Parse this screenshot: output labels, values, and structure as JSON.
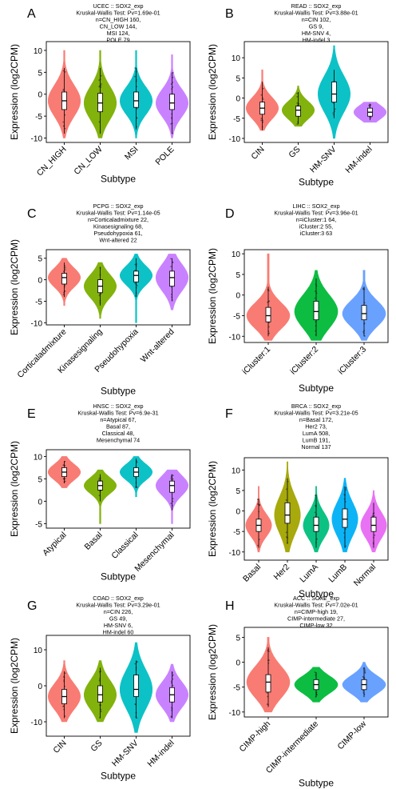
{
  "panels": [
    {
      "letter": "A",
      "header": [
        "UCEC :: SOX2_exp",
        "Kruskal-Wallis Test: Pv=1.69e-01",
        "n=CN_HIGH 160,",
        "CN_LOW 144,",
        "MSI 124,",
        "POLE 79"
      ],
      "chart_data": {
        "type": "violin",
        "xlabel": "Subtype",
        "ylabel": "Expression (log2CPM)",
        "ylim": [
          -11,
          12
        ],
        "yticks": [
          -10,
          -5,
          0,
          5,
          10
        ],
        "categories": [
          "CN_HIGH",
          "CN_LOW",
          "MSI",
          "POLE"
        ],
        "colors": [
          "#f8766d",
          "#7cae00",
          "#00bfc4",
          "#c77cff"
        ],
        "series": [
          {
            "ymin": -10,
            "ymax": 10,
            "q1": -3.5,
            "median": -1.5,
            "q3": 0.5,
            "whisker_low": -9,
            "whisker_high": 6
          },
          {
            "ymin": -10,
            "ymax": 10,
            "q1": -4,
            "median": -2,
            "q3": 0.2,
            "whisker_low": -9,
            "whisker_high": 6
          },
          {
            "ymin": -10,
            "ymax": 10,
            "q1": -3,
            "median": -1.5,
            "q3": 0.5,
            "whisker_low": -8,
            "whisker_high": 6
          },
          {
            "ymin": -10,
            "ymax": 9,
            "q1": -3.5,
            "median": -2,
            "q3": 0,
            "whisker_low": -9,
            "whisker_high": 5
          }
        ]
      }
    },
    {
      "letter": "B",
      "header": [
        "READ :: SOX2_exp",
        "Kruskal-Wallis Test: Pv=3.88e-01",
        "n=CIN 102,",
        "GS 9,",
        "HM-SNV 4,",
        "HM-indel 3"
      ],
      "chart_data": {
        "type": "violin",
        "xlabel": "Subtype",
        "ylabel": "Expression (log2CPM)",
        "ylim": [
          -11,
          14
        ],
        "yticks": [
          -10,
          -5,
          0,
          5,
          10
        ],
        "categories": [
          "CIN",
          "GS",
          "HM-SNV",
          "HM-indel"
        ],
        "colors": [
          "#f8766d",
          "#7cae00",
          "#00bfc4",
          "#c77cff"
        ],
        "series": [
          {
            "ymin": -8,
            "ymax": 7,
            "q1": -4,
            "median": -2.5,
            "q3": -1,
            "whisker_low": -8,
            "whisker_high": 4
          },
          {
            "ymin": -7,
            "ymax": 3,
            "q1": -4.5,
            "median": -3,
            "q3": -2,
            "whisker_low": -6.5,
            "whisker_high": 1.5
          },
          {
            "ymin": -10,
            "ymax": 13,
            "q1": -1,
            "median": 1,
            "q3": 4,
            "whisker_low": -5,
            "whisker_high": 7
          },
          {
            "ymin": -6,
            "ymax": -1,
            "q1": -4.5,
            "median": -3.5,
            "q3": -2.5,
            "whisker_low": -5.5,
            "whisker_high": -1.5
          }
        ]
      }
    },
    {
      "letter": "C",
      "header": [
        "PCPG :: SOX2_exp",
        "Kruskal-Wallis Test: Pv=1.14e-05",
        "n=Corticaladmixture 22,",
        "Kinasesignaling 68,",
        "Pseudohypoxia 61,",
        "Wnt-altered 22"
      ],
      "chart_data": {
        "type": "violin",
        "xlabel": "Subtype",
        "ylabel": "Expression (log2CPM)",
        "ylim": [
          -10.5,
          7
        ],
        "yticks": [
          -10,
          -5,
          0,
          5
        ],
        "categories": [
          "Corticaladmixture",
          "Kinasesignaling",
          "Pseudohypoxia",
          "Wnt-altered"
        ],
        "colors": [
          "#f8766d",
          "#7cae00",
          "#00bfc4",
          "#c77cff"
        ],
        "series": [
          {
            "ymin": -6,
            "ymax": 5,
            "q1": -1,
            "median": 0.5,
            "q3": 1.5,
            "whisker_low": -4,
            "whisker_high": 4
          },
          {
            "ymin": -9,
            "ymax": 4,
            "q1": -3,
            "median": -1.5,
            "q3": 0,
            "whisker_low": -6,
            "whisker_high": 3
          },
          {
            "ymin": -10,
            "ymax": 6,
            "q1": -0.5,
            "median": 1,
            "q3": 2,
            "whisker_low": -4,
            "whisker_high": 5
          },
          {
            "ymin": -7,
            "ymax": 6,
            "q1": -1.5,
            "median": 0.5,
            "q3": 2,
            "whisker_low": -5,
            "whisker_high": 5
          }
        ]
      }
    },
    {
      "letter": "D",
      "header": [
        "LIHC :: SOX2_exp",
        "Kruskal-Wallis Test: Pv=3.96e-01",
        "n=iCluster:1 64,",
        "iCluster:2 55,",
        "iCluster:3 63"
      ],
      "chart_data": {
        "type": "violin",
        "xlabel": "Subtype",
        "ylabel": "Expression (log2CPM)",
        "ylim": [
          -11.5,
          11
        ],
        "yticks": [
          -10,
          -5,
          0,
          5,
          10
        ],
        "categories": [
          "iCluster:1",
          "iCluster:2",
          "iCluster:3"
        ],
        "colors": [
          "#f8766d",
          "#00ba38",
          "#619cff"
        ],
        "series": [
          {
            "ymin": -11,
            "ymax": 10,
            "q1": -6.5,
            "median": -5,
            "q3": -3,
            "whisker_low": -10,
            "whisker_high": 2
          },
          {
            "ymin": -11,
            "ymax": 6,
            "q1": -6,
            "median": -4,
            "q3": -1.5,
            "whisker_low": -10,
            "whisker_high": 4
          },
          {
            "ymin": -11,
            "ymax": 6,
            "q1": -6,
            "median": -4.5,
            "q3": -2.5,
            "whisker_low": -10,
            "whisker_high": 2
          }
        ]
      }
    },
    {
      "letter": "E",
      "header": [
        "HNSC :: SOX2_exp",
        "Kruskal-Wallis Test: Pv=6.9e-31",
        "n=Atypical 67,",
        "Basal 87,",
        "Classical 48,",
        "Mesenchymal 74"
      ],
      "chart_data": {
        "type": "violin",
        "xlabel": "Subtype",
        "ylabel": "Expression (log2CPM)",
        "ylim": [
          -6,
          11.5
        ],
        "yticks": [
          -5,
          0,
          5,
          10
        ],
        "categories": [
          "Atypical",
          "Basal",
          "Classical",
          "Mesenchymal"
        ],
        "colors": [
          "#f8766d",
          "#7cae00",
          "#00bfc4",
          "#c77cff"
        ],
        "series": [
          {
            "ymin": 3,
            "ymax": 10,
            "q1": 5.5,
            "median": 6.5,
            "q3": 7.5,
            "whisker_low": 4,
            "whisker_high": 9
          },
          {
            "ymin": -5,
            "ymax": 7,
            "q1": 2.5,
            "median": 3.5,
            "q3": 4.5,
            "whisker_low": 0,
            "whisker_high": 6
          },
          {
            "ymin": 1,
            "ymax": 10,
            "q1": 5.5,
            "median": 6.5,
            "q3": 7.5,
            "whisker_low": 3,
            "whisker_high": 9.5
          },
          {
            "ymin": -5,
            "ymax": 7,
            "q1": 2,
            "median": 3.5,
            "q3": 4.5,
            "whisker_low": -2,
            "whisker_high": 6
          }
        ]
      }
    },
    {
      "letter": "F",
      "header": [
        "BRCA :: SOX2_exp",
        "Kruskal-Wallis Test: Pv=3.21e-05",
        "n=Basal 172,",
        "Her2 73,",
        "LumA 508,",
        "LumB 191,",
        "Normal 137"
      ],
      "chart_data": {
        "type": "violin",
        "xlabel": "Subtype",
        "ylabel": "Expression (log2CPM)",
        "ylim": [
          -12,
          13
        ],
        "yticks": [
          -10,
          -5,
          0,
          5,
          10
        ],
        "categories": [
          "Basal",
          "Her2",
          "LumA",
          "LumB",
          "Normal"
        ],
        "colors": [
          "#f8766d",
          "#a3a500",
          "#00bf7d",
          "#00b0f6",
          "#e76bf3"
        ],
        "series": [
          {
            "ymin": -10,
            "ymax": 6,
            "q1": -5,
            "median": -3.5,
            "q3": -2,
            "whisker_low": -9,
            "whisker_high": 3
          },
          {
            "ymin": -10,
            "ymax": 12,
            "q1": -3,
            "median": -1,
            "q3": 2,
            "whisker_low": -8,
            "whisker_high": 8
          },
          {
            "ymin": -10,
            "ymax": 6,
            "q1": -5,
            "median": -3.5,
            "q3": -1.5,
            "whisker_low": -9,
            "whisker_high": 4
          },
          {
            "ymin": -10,
            "ymax": 8,
            "q1": -4,
            "median": -2,
            "q3": 0.5,
            "whisker_low": -9,
            "whisker_high": 6
          },
          {
            "ymin": -10,
            "ymax": 5,
            "q1": -5,
            "median": -3.5,
            "q3": -1.5,
            "whisker_low": -9,
            "whisker_high": 2
          }
        ]
      }
    },
    {
      "letter": "G",
      "header": [
        "COAD :: SOX2_exp",
        "Kruskal-Wallis Test: Pv=3.29e-01",
        "n=CIN 226,",
        "GS 49,",
        "HM-SNV 6,",
        "HM-indel 60"
      ],
      "chart_data": {
        "type": "violin",
        "xlabel": "Subtype",
        "ylabel": "Expression (log2CPM)",
        "ylim": [
          -14,
          14
        ],
        "yticks": [
          -10,
          0,
          10
        ],
        "categories": [
          "CIN",
          "GS",
          "HM-SNV",
          "HM-indel"
        ],
        "colors": [
          "#f8766d",
          "#7cae00",
          "#00bfc4",
          "#c77cff"
        ],
        "series": [
          {
            "ymin": -10,
            "ymax": 7,
            "q1": -5,
            "median": -3,
            "q3": -1,
            "whisker_low": -9,
            "whisker_high": 4
          },
          {
            "ymin": -10,
            "ymax": 7,
            "q1": -4.5,
            "median": -2.5,
            "q3": 0,
            "whisker_low": -9,
            "whisker_high": 5
          },
          {
            "ymin": -13,
            "ymax": 12,
            "q1": -3,
            "median": -1,
            "q3": 3,
            "whisker_low": -9,
            "whisker_high": 7
          },
          {
            "ymin": -10,
            "ymax": 6,
            "q1": -4.5,
            "median": -2.5,
            "q3": -0.5,
            "whisker_low": -9,
            "whisker_high": 4
          }
        ]
      }
    },
    {
      "letter": "H",
      "header": [
        "ACC :: SOX2_exp",
        "Kruskal-Wallis Test: Pv=7.02e-01",
        "n=CIMP-high 19,",
        "CIMP-intermediate 27,",
        "CIMP-low 32"
      ],
      "chart_data": {
        "type": "violin",
        "xlabel": "Subtype",
        "ylabel": "Expression (log2CPM)",
        "ylim": [
          -11,
          7
        ],
        "yticks": [
          -10,
          -5,
          0,
          5
        ],
        "categories": [
          "CIMP-high",
          "CIMP-intermediate",
          "CIMP-low"
        ],
        "colors": [
          "#f8766d",
          "#00ba38",
          "#619cff"
        ],
        "series": [
          {
            "ymin": -10,
            "ymax": 5,
            "q1": -6,
            "median": -4,
            "q3": -2.5,
            "whisker_low": -9,
            "whisker_high": 3
          },
          {
            "ymin": -8,
            "ymax": -1,
            "q1": -5.5,
            "median": -4.5,
            "q3": -3.5,
            "whisker_low": -7,
            "whisker_high": -2
          },
          {
            "ymin": -8,
            "ymax": 0,
            "q1": -5.5,
            "median": -4.5,
            "q3": -3.5,
            "whisker_low": -7,
            "whisker_high": -1
          }
        ]
      }
    }
  ]
}
